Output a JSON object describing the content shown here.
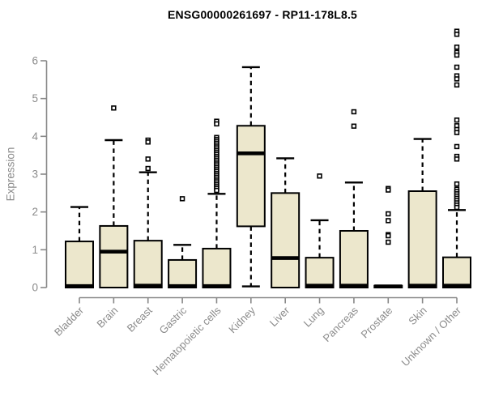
{
  "chart_data": {
    "type": "boxplot",
    "title": "ENSG00000261697 - RP11-178L8.5",
    "ylabel": "Expression",
    "ylim": [
      0,
      6.9
    ],
    "yticks": [
      0,
      1,
      2,
      3,
      4,
      5,
      6
    ],
    "grid": false,
    "legend": null,
    "categories": [
      "Bladder",
      "Brain",
      "Breast",
      "Gastric",
      "Hematopoietic cells",
      "Kidney",
      "Liver",
      "Lung",
      "Pancreas",
      "Prostate",
      "Skin",
      "Unknown / Other"
    ],
    "series": [
      {
        "name": "Bladder",
        "q1": 0,
        "median": 0.04,
        "q3": 1.22,
        "whisker_low": null,
        "whisker_high": 2.13,
        "outliers": []
      },
      {
        "name": "Brain",
        "q1": 0,
        "median": 0.95,
        "q3": 1.63,
        "whisker_low": null,
        "whisker_high": 3.9,
        "outliers": [
          4.75
        ]
      },
      {
        "name": "Breast",
        "q1": 0,
        "median": 0.05,
        "q3": 1.24,
        "whisker_low": null,
        "whisker_high": 3.05,
        "outliers": [
          3.9,
          3.85,
          3.4,
          3.15
        ]
      },
      {
        "name": "Gastric",
        "q1": 0,
        "median": 0.04,
        "q3": 0.73,
        "whisker_low": null,
        "whisker_high": 1.13,
        "outliers": [
          2.35
        ]
      },
      {
        "name": "Hematopoietic cells",
        "q1": 0,
        "median": 0.04,
        "q3": 1.03,
        "whisker_low": null,
        "whisker_high": 2.48,
        "outliers": [
          4.4,
          4.33,
          3.97,
          3.92,
          3.87,
          3.82,
          3.77,
          3.72,
          3.67,
          3.62,
          3.57,
          3.52,
          3.47,
          3.42,
          3.37,
          3.32,
          3.27,
          3.22,
          3.17,
          3.12,
          3.07,
          3.02,
          2.97,
          2.92,
          2.87,
          2.82,
          2.77,
          2.72,
          2.67,
          2.62,
          2.57
        ]
      },
      {
        "name": "Kidney",
        "q1": 1.62,
        "median": 3.55,
        "q3": 4.28,
        "whisker_low": 0.03,
        "whisker_high": 5.83,
        "outliers": []
      },
      {
        "name": "Liver",
        "q1": 0,
        "median": 0.78,
        "q3": 2.5,
        "whisker_low": null,
        "whisker_high": 3.42,
        "outliers": []
      },
      {
        "name": "Lung",
        "q1": 0,
        "median": 0.05,
        "q3": 0.79,
        "whisker_low": null,
        "whisker_high": 1.78,
        "outliers": [
          2.95
        ]
      },
      {
        "name": "Pancreas",
        "q1": 0,
        "median": 0.05,
        "q3": 1.5,
        "whisker_low": null,
        "whisker_high": 2.78,
        "outliers": [
          4.65,
          4.27
        ]
      },
      {
        "name": "Prostate",
        "q1": 0,
        "median": 0.03,
        "q3": 0.05,
        "whisker_low": null,
        "whisker_high": null,
        "outliers": [
          2.62,
          2.58,
          1.95,
          1.77,
          1.4,
          1.37,
          1.2
        ]
      },
      {
        "name": "Skin",
        "q1": 0,
        "median": 0.05,
        "q3": 2.55,
        "whisker_low": null,
        "whisker_high": 3.93,
        "outliers": []
      },
      {
        "name": "Unknown / Other",
        "q1": 0,
        "median": 0.05,
        "q3": 0.8,
        "whisker_low": null,
        "whisker_high": 2.05,
        "outliers": [
          6.78,
          6.7,
          6.36,
          6.22,
          6.15,
          5.83,
          5.6,
          5.52,
          5.36,
          4.43,
          4.28,
          4.18,
          4.1,
          3.73,
          3.47,
          3.4,
          2.74,
          2.6,
          2.54,
          2.48,
          2.42,
          2.36,
          2.3,
          2.24,
          2.18,
          2.12
        ]
      }
    ]
  },
  "colors": {
    "box_fill": "#ECE7CC",
    "box_stroke": "#000000",
    "median": "#000000",
    "whisker": "#000000",
    "outlier_stroke": "#000000",
    "outlier_fill": "#FFFFFF",
    "axis": "#888888",
    "tick_text": "#8B8B8B",
    "title_text": "#000000",
    "background": "#FFFFFF"
  }
}
